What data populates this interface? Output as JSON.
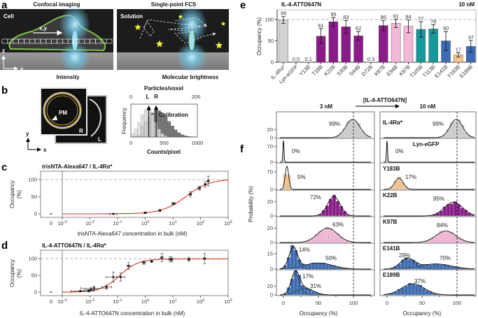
{
  "letters": {
    "a": "a",
    "b": "b",
    "c": "c",
    "d": "d",
    "e": "e",
    "f": "f"
  },
  "panel_a": {
    "left_title": "Confocal imaging",
    "right_title": "Single-point FCS",
    "cell_label": "Cell",
    "solution_label": "Solution",
    "scan_label": "x,y",
    "axis_z": "z",
    "axis_x": "x",
    "left_caption": "Intensity",
    "right_caption": "Molecular brightness"
  },
  "panel_b": {
    "pm_label": "PM",
    "r_label": "R",
    "l_label": "L",
    "axis_y": "y",
    "axis_x": "x",
    "hist": {
      "top_axis_label": "Particles/voxel",
      "top_ticks": [
        "0",
        "200"
      ],
      "marker_l": "L",
      "marker_r": "R",
      "marker_l_counts": 270,
      "marker_r_counts": 380,
      "ylabel": "Frequency",
      "annotation": "Calibration",
      "bottom_ticks": [
        "0",
        "500",
        "1000"
      ],
      "xlabel": "Counts/pixel",
      "light_peak_counts": 250,
      "dark_peak_counts": 400
    }
  },
  "chart_data": [
    {
      "id": "c",
      "type": "scatter",
      "title": "trisNTA-Alexa647 / IL-4Rα*",
      "xlabel": "trisNTA-Alexa647 concentration in bulk (nM)",
      "ylabel_line1": "Occupancy",
      "ylabel_line2": "(%)",
      "xscale": "log",
      "xlim": [
        0.001,
        1000
      ],
      "ylim": [
        0,
        120
      ],
      "zero_tick": "0",
      "x_tick_base": "10",
      "x_tick_exps": [
        "-3",
        "-2",
        "-1",
        "0",
        "1",
        "2",
        "3"
      ],
      "y_ticks": [
        "0",
        "50",
        "100"
      ],
      "reference_line": 100,
      "x": [
        0.07,
        1.0,
        3.4,
        10.6,
        43,
        91,
        147,
        190
      ],
      "y": [
        0,
        3,
        10,
        30,
        57,
        75,
        86,
        96
      ],
      "yerr": [
        1,
        2,
        3,
        3,
        8,
        6,
        8,
        14
      ],
      "xerr_factor": [
        1.35,
        1.1,
        1.08,
        1.15,
        1.1,
        1.12,
        1.08,
        1.1
      ],
      "fit": {
        "type": "hill",
        "ec50": 30,
        "n": 1,
        "top": 102,
        "color": "#e53020"
      }
    },
    {
      "id": "d",
      "type": "scatter",
      "title": "IL-4-ATTO647N / IL-4Rα*",
      "xlabel": "IL-4-ATTO647N concentration in bulk (nM)",
      "ylabel_line1": "Occupancy",
      "ylabel_line2": "(%)",
      "xscale": "log",
      "xlim": [
        0.001,
        1000
      ],
      "ylim": [
        0,
        120
      ],
      "zero_tick": "0",
      "x_tick_base": "10",
      "x_tick_exps": [
        "-3",
        "-2",
        "-1",
        "0",
        "1",
        "2",
        "3"
      ],
      "y_ticks": [
        "0",
        "50",
        "100"
      ],
      "reference_line": 100,
      "x": [
        0.0045,
        0.009,
        0.011,
        0.014,
        0.04,
        0.07,
        0.13,
        0.25,
        0.9,
        1.7,
        4,
        8,
        9,
        38,
        140
      ],
      "y": [
        3,
        4,
        8,
        12,
        15,
        45,
        45,
        78,
        88,
        92,
        103,
        98,
        97,
        98,
        100
      ],
      "yerr": [
        2,
        3,
        5,
        6,
        6,
        15,
        12,
        10,
        5,
        3,
        12,
        8,
        7,
        6,
        15
      ],
      "xerr_factor": [
        2.2,
        1.6,
        1.7,
        3,
        1.5,
        1.8,
        1.4,
        1.15,
        1.15,
        1.1,
        1.1,
        1.15,
        1.1,
        1.1,
        1.1
      ],
      "fit": {
        "type": "hill",
        "ec50": 0.12,
        "n": 1.3,
        "top": 99,
        "color": "#e53020"
      }
    },
    {
      "id": "e",
      "type": "bar",
      "title": "IL-4-ATTO647N",
      "condition": "10 nM",
      "ylabel": "Occupancy (%)",
      "ylim": [
        0,
        120
      ],
      "y_ticks": [
        "0",
        "50",
        "100"
      ],
      "reference_line": 100,
      "categories": [
        "IL-4Rα*",
        "Lyn-eGFP",
        "Y13B",
        "T18B",
        "K22B",
        "S30B",
        "S44B",
        "D72B",
        "K87B",
        "E94B",
        "K97B",
        "T105B",
        "T113B",
        "E141B",
        "Y183B",
        "E189B"
      ],
      "values": [
        99,
        0.0,
        0.1,
        61,
        95,
        83,
        62,
        0.3,
        86,
        91,
        84,
        77,
        78,
        50,
        17,
        37
      ],
      "value_labels": [
        "99",
        "0.0",
        "0.1",
        "61",
        "95",
        "83",
        "62",
        "0.3",
        "86",
        "91",
        "84",
        "77",
        "78",
        "50",
        "17",
        "37"
      ],
      "yerr": [
        8,
        0,
        0,
        18,
        10,
        15,
        10,
        0,
        12,
        10,
        15,
        18,
        10,
        22,
        5,
        14
      ],
      "colors": [
        "#d4d4d4",
        "#d4d4d4",
        "#8b1a8b",
        "#8b1a8b",
        "#8b1a8b",
        "#8b1a8b",
        "#8b1a8b",
        "#8b1a8b",
        "#8b1a8b",
        "#f4b8d8",
        "#f4b8d8",
        "#16999a",
        "#16999a",
        "#3a6bb4",
        "#f7c48e",
        "#3a6bb4"
      ]
    },
    {
      "id": "f",
      "type": "histogram",
      "header": "[IL-4-ATTO647N]",
      "columns": [
        "3 nM",
        "10 nM"
      ],
      "ylabel": "Probability (%)",
      "xlabel": "Occupancy (%)",
      "x_ticks": [
        "0",
        "50",
        "100"
      ],
      "xlim": [
        -5,
        130
      ],
      "reference_line": 100,
      "rows": [
        {
          "name": "IL-4Rα*",
          "color": "#cfcfcf",
          "ylim": 60,
          "y_ticks": [
            "0",
            "20"
          ],
          "left": {
            "components": [
              {
                "mean": 99,
                "sd": 10,
                "amp": 45
              }
            ],
            "labels": [
              "99%"
            ]
          },
          "right": {
            "components": [
              {
                "mean": 99,
                "sd": 9,
                "amp": 45
              }
            ],
            "labels": [
              "99%"
            ]
          }
        },
        {
          "name": "Lyn-eGFP",
          "color": "#cfcfcf",
          "ylim": 100,
          "y_ticks": [
            "0",
            "70"
          ],
          "left": {
            "components": [
              {
                "mean": 0,
                "sd": 0.8,
                "amp": 95
              }
            ],
            "labels": [
              "0%"
            ]
          },
          "right": {
            "components": [
              {
                "mean": 0,
                "sd": 0.8,
                "amp": 95
              }
            ],
            "labels": [
              "0%"
            ]
          }
        },
        {
          "name": "Y183B",
          "color": "#f7c48e",
          "ylim": 100,
          "y_ticks": [
            "0",
            "70"
          ],
          "left": {
            "components": [
              {
                "mean": 5,
                "sd": 2.5,
                "amp": 92
              }
            ],
            "labels": [
              "5%"
            ]
          },
          "right": {
            "components": [
              {
                "mean": 17,
                "sd": 6,
                "amp": 45
              }
            ],
            "labels": [
              "17%"
            ]
          }
        },
        {
          "name": "K22B",
          "color": "#8b1a8b",
          "ylim": 34,
          "y_ticks": [
            "0",
            "20"
          ],
          "left": {
            "components": [
              {
                "mean": 72,
                "sd": 9,
                "amp": 27
              }
            ],
            "labels": [
              "72%"
            ]
          },
          "right": {
            "components": [
              {
                "mean": 95,
                "sd": 13,
                "amp": 19
              }
            ],
            "labels": [
              "95%"
            ]
          }
        },
        {
          "name": "K97B",
          "color": "#f4b8d8",
          "ylim": 34,
          "y_ticks": [
            "0",
            "20"
          ],
          "left": {
            "components": [
              {
                "mean": 63,
                "sd": 14,
                "amp": 20
              }
            ],
            "labels": [
              "63%"
            ]
          },
          "right": {
            "components": [
              {
                "mean": 84,
                "sd": 14,
                "amp": 16
              }
            ],
            "labels": [
              "84%"
            ]
          }
        },
        {
          "name": "E141B",
          "color": "#3a6bb4",
          "ylim": 24,
          "y_ticks": [
            "0",
            "15"
          ],
          "left": {
            "components": [
              {
                "mean": 14,
                "sd": 6,
                "amp": 21
              },
              {
                "mean": 50,
                "sd": 20,
                "amp": 6
              }
            ],
            "labels": [
              "14%",
              "50%"
            ]
          },
          "right": {
            "components": [
              {
                "mean": 29,
                "sd": 10,
                "amp": 10
              },
              {
                "mean": 70,
                "sd": 22,
                "amp": 5
              }
            ],
            "labels": [
              "29%",
              "70%"
            ]
          }
        },
        {
          "name": "E189B",
          "color": "#3a6bb4",
          "ylim": 55,
          "y_ticks": [
            "0",
            "20"
          ],
          "left": {
            "components": [
              {
                "mean": 17,
                "sd": 6,
                "amp": 48
              },
              {
                "mean": 31,
                "sd": 12,
                "amp": 15
              }
            ],
            "labels": [
              "17%",
              "31%"
            ]
          },
          "right": {
            "components": [
              {
                "mean": 37,
                "sd": 16,
                "amp": 26
              }
            ],
            "labels": [
              "37%"
            ]
          }
        }
      ]
    }
  ]
}
